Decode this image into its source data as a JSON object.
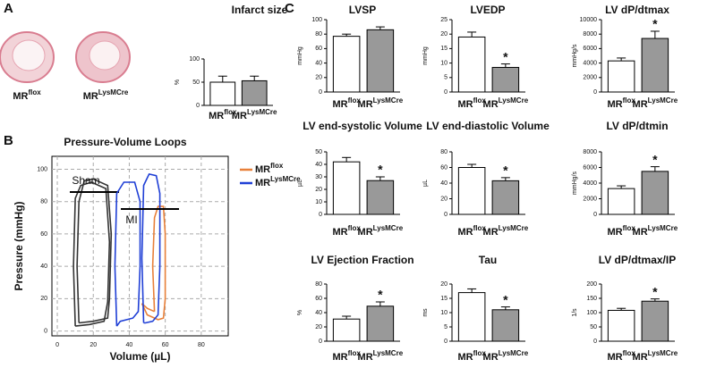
{
  "panel_labels": [
    "A",
    "B",
    "C"
  ],
  "chart_data": [
    {
      "type": "bar",
      "title": "Infarct size",
      "ylabel": "%",
      "categories": [
        "MRflox",
        "MRLysMCre"
      ],
      "values": [
        50,
        53
      ],
      "errors": [
        13,
        10
      ],
      "colors": [
        "#ffffff",
        "#999999"
      ],
      "ylim": [
        0,
        100
      ],
      "yticks": [
        0,
        50,
        100
      ]
    },
    {
      "type": "line",
      "title": "Pressure-Volume Loops",
      "xlabel": "Volume (µL)",
      "ylabel": "Pressure  (mmHg)",
      "xlim": [
        -3,
        95
      ],
      "ylim": [
        -3,
        108
      ],
      "xticks": [
        0,
        20,
        40,
        60,
        80
      ],
      "yticks": [
        0,
        20,
        40,
        60,
        80,
        100
      ],
      "grid": true,
      "annotations": [
        "MI"
      ],
      "series": [
        {
          "name": "Sham",
          "color": "#333333",
          "in_legend": false,
          "x": [
            12,
            11,
            12,
            15,
            20,
            28,
            30,
            29,
            28,
            20,
            12,
            null,
            10,
            9,
            10,
            13,
            19,
            27,
            29,
            28,
            26,
            18,
            10
          ],
          "y": [
            5,
            40,
            80,
            93,
            94,
            90,
            60,
            20,
            8,
            6,
            5,
            null,
            3,
            40,
            82,
            90,
            92,
            88,
            55,
            18,
            6,
            4,
            3
          ]
        },
        {
          "name": "MRflox",
          "color": "#e8803a",
          "in_legend": true,
          "x": [
            54,
            53,
            54,
            56,
            59,
            60,
            60,
            59,
            56,
            50,
            47,
            50,
            54
          ],
          "y": [
            12,
            40,
            70,
            77,
            77,
            60,
            20,
            8,
            7,
            10,
            17,
            14,
            12
          ]
        },
        {
          "name": "MRLysMCre",
          "color": "#1f3fd6",
          "in_legend": true,
          "x": [
            33,
            32,
            33,
            37,
            43,
            46,
            46,
            45,
            42,
            35,
            33,
            null,
            48,
            47,
            48,
            51,
            55,
            57,
            57,
            56,
            53,
            49,
            48
          ],
          "y": [
            3,
            40,
            85,
            92,
            92,
            80,
            40,
            12,
            8,
            6,
            3,
            null,
            5,
            45,
            90,
            97,
            96,
            85,
            40,
            10,
            6,
            5,
            5
          ]
        }
      ]
    },
    {
      "type": "bar",
      "title": "LVSP",
      "ylabel": "mmHg",
      "categories": [
        "MRflox",
        "MRLysMCre"
      ],
      "values": [
        77,
        86
      ],
      "errors": [
        3,
        4
      ],
      "colors": [
        "#ffffff",
        "#999999"
      ],
      "ylim": [
        0,
        100
      ],
      "yticks": [
        0,
        20,
        40,
        60,
        80,
        100
      ]
    },
    {
      "type": "bar",
      "title": "LVEDP",
      "ylabel": "mmHg",
      "categories": [
        "MRflox",
        "MRLysMCre"
      ],
      "values": [
        19,
        8.5
      ],
      "errors": [
        1.7,
        1.2
      ],
      "significance": [
        null,
        "*"
      ],
      "colors": [
        "#ffffff",
        "#999999"
      ],
      "ylim": [
        0,
        25
      ],
      "yticks": [
        0,
        5,
        10,
        15,
        20,
        25
      ]
    },
    {
      "type": "bar",
      "title": "LV dP/dtmax",
      "ylabel": "mmHg/s",
      "categories": [
        "MRflox",
        "MRLysMCre"
      ],
      "values": [
        4300,
        7400
      ],
      "errors": [
        400,
        1000
      ],
      "significance": [
        null,
        "*"
      ],
      "colors": [
        "#ffffff",
        "#999999"
      ],
      "ylim": [
        0,
        10000
      ],
      "yticks": [
        0,
        2000,
        4000,
        6000,
        8000,
        10000
      ]
    },
    {
      "type": "bar",
      "title": "LV end-systolic Volume",
      "ylabel": "µL",
      "categories": [
        "MRflox",
        "MRLysMCre"
      ],
      "values": [
        42,
        27
      ],
      "errors": [
        3.5,
        3
      ],
      "significance": [
        null,
        "*"
      ],
      "colors": [
        "#ffffff",
        "#999999"
      ],
      "ylim": [
        0,
        50
      ],
      "yticks": [
        0,
        10,
        20,
        30,
        40,
        50
      ]
    },
    {
      "type": "bar",
      "title": "LV end-diastolic Volume",
      "ylabel": "µL",
      "categories": [
        "MRflox",
        "MRLysMCre"
      ],
      "values": [
        60,
        43
      ],
      "errors": [
        4,
        4
      ],
      "significance": [
        null,
        "*"
      ],
      "colors": [
        "#ffffff",
        "#999999"
      ],
      "ylim": [
        0,
        80
      ],
      "yticks": [
        0,
        20,
        40,
        60,
        80
      ]
    },
    {
      "type": "bar",
      "title": "LV dP/dtmin",
      "ylabel": "mmHg/s",
      "categories": [
        "MRflox",
        "MRLysMCre"
      ],
      "values": [
        3300,
        5500
      ],
      "errors": [
        350,
        600
      ],
      "significance": [
        null,
        "*"
      ],
      "colors": [
        "#ffffff",
        "#999999"
      ],
      "ylim": [
        0,
        8000
      ],
      "yticks": [
        0,
        2000,
        4000,
        6000,
        8000
      ]
    },
    {
      "type": "bar",
      "title": "LV Ejection Fraction",
      "ylabel": "%",
      "categories": [
        "MRflox",
        "MRLysMCre"
      ],
      "values": [
        31,
        49
      ],
      "errors": [
        4,
        6
      ],
      "significance": [
        null,
        "*"
      ],
      "colors": [
        "#ffffff",
        "#999999"
      ],
      "ylim": [
        0,
        80
      ],
      "yticks": [
        0,
        20,
        40,
        60,
        80
      ]
    },
    {
      "type": "bar",
      "title": "Tau",
      "ylabel": "ms",
      "categories": [
        "MRflox",
        "MRLysMCre"
      ],
      "values": [
        17,
        11
      ],
      "errors": [
        1.3,
        1
      ],
      "significance": [
        null,
        "*"
      ],
      "colors": [
        "#ffffff",
        "#999999"
      ],
      "ylim": [
        0,
        20
      ],
      "yticks": [
        0,
        5,
        10,
        15,
        20
      ]
    },
    {
      "type": "bar",
      "title": "LV  dP/dtmax/IP",
      "ylabel": "1/s",
      "categories": [
        "MRflox",
        "MRLysMCre"
      ],
      "values": [
        108,
        140
      ],
      "errors": [
        7,
        8
      ],
      "significance": [
        null,
        "*"
      ],
      "colors": [
        "#ffffff",
        "#999999"
      ],
      "ylim": [
        0,
        200
      ],
      "yticks": [
        0,
        50,
        100,
        150,
        200
      ]
    }
  ]
}
